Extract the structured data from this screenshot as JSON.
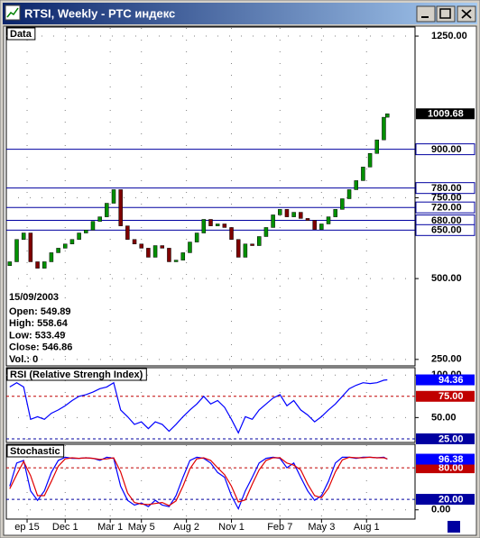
{
  "window": {
    "title": "RTSI, Weekly - РТС индекс"
  },
  "chart_data": [
    {
      "type": "candlestick",
      "title": "Data",
      "x": [
        -5,
        -3,
        -1,
        1,
        3,
        5,
        7,
        9,
        11,
        13,
        15,
        17,
        19,
        21,
        23,
        25,
        27,
        29,
        31,
        33,
        35,
        37,
        39,
        41,
        43,
        45,
        47,
        49,
        51,
        53,
        55,
        57,
        59,
        61,
        63,
        65,
        67,
        69,
        71,
        73,
        75,
        77,
        79,
        81,
        83,
        85,
        87,
        89,
        91,
        93,
        95,
        97,
        99,
        101,
        103,
        104
      ],
      "xlim": [
        -6,
        112
      ],
      "open": [
        540,
        552,
        621,
        641,
        552,
        532,
        552,
        580,
        594,
        607,
        621,
        641,
        650,
        677,
        691,
        733,
        775,
        663,
        621,
        607,
        594,
        566,
        602,
        594,
        552,
        557,
        580,
        613,
        641,
        683,
        663,
        669,
        658,
        621,
        566,
        607,
        602,
        630,
        658,
        697,
        714,
        691,
        705,
        686,
        680,
        652,
        669,
        691,
        714,
        747,
        775,
        803,
        845,
        887,
        929,
        999
      ],
      "close": [
        552,
        621,
        641,
        552,
        532,
        552,
        580,
        594,
        607,
        621,
        641,
        650,
        677,
        691,
        733,
        775,
        663,
        621,
        607,
        594,
        566,
        602,
        594,
        552,
        557,
        580,
        613,
        641,
        683,
        663,
        669,
        658,
        621,
        566,
        607,
        602,
        630,
        658,
        697,
        714,
        691,
        705,
        686,
        680,
        652,
        669,
        691,
        714,
        747,
        775,
        803,
        845,
        887,
        929,
        999,
        1009.68
      ],
      "up_color": "#009000",
      "down_color": "#800000",
      "last_label_color": "#000000",
      "ylim": [
        230,
        1278
      ],
      "yticks": [
        {
          "value": 1250,
          "label": "1250.00"
        },
        {
          "value": 750,
          "label": "750.00"
        },
        {
          "value": 500,
          "label": "500.00"
        },
        {
          "value": 250,
          "label": "250.00"
        }
      ],
      "levels": [
        {
          "value": 900,
          "label": "900.00",
          "color": "#0000a0"
        },
        {
          "value": 780,
          "label": "780.00",
          "color": "#0000a0"
        },
        {
          "value": 720,
          "label": "720.00",
          "color": "#0000a0"
        },
        {
          "value": 680,
          "label": "680.00",
          "color": "#0000a0"
        },
        {
          "value": 650,
          "label": "650.00",
          "color": "#0000a0"
        }
      ],
      "info": {
        "date": "15/09/2003",
        "fields": [
          {
            "label": "Open:",
            "value": 549.89
          },
          {
            "label": "High:",
            "value": 558.64
          },
          {
            "label": "Low:",
            "value": 533.49
          },
          {
            "label": "Close:",
            "value": 546.86
          },
          {
            "label": "Vol.:",
            "value": 0
          }
        ]
      },
      "grid": true
    },
    {
      "type": "line",
      "title": "RSI (Relative Strengh Index)",
      "series": [
        {
          "color": "#0000ff",
          "values": [
            86,
            91,
            86,
            48,
            51,
            48,
            55,
            59,
            64,
            70,
            75,
            77,
            80,
            84,
            86,
            91,
            59,
            51,
            42,
            45,
            37,
            45,
            42,
            34,
            42,
            51,
            59,
            66,
            75,
            66,
            70,
            62,
            48,
            32,
            51,
            48,
            59,
            66,
            73,
            77,
            64,
            70,
            59,
            53,
            45,
            51,
            59,
            66,
            75,
            84,
            88,
            91,
            90,
            91,
            94,
            94.36
          ]
        }
      ],
      "ylim": [
        20.7,
        108.7
      ],
      "yticks": [
        {
          "value": 100,
          "label": "100.00"
        },
        {
          "value": 50,
          "label": "50.00"
        }
      ],
      "levels": [
        {
          "value": 75,
          "label": "75.00",
          "color": "#c00000"
        },
        {
          "value": 25,
          "label": "25.00",
          "color": "#0000a0"
        }
      ],
      "grid": true
    },
    {
      "type": "line",
      "title": "Stochastic",
      "series": [
        {
          "color": "#0000ff",
          "values": [
            45,
            89,
            94,
            36,
            18,
            36,
            71,
            94,
            100,
            98,
            98,
            99,
            98,
            94,
            100,
            98,
            45,
            18,
            9,
            13,
            6,
            18,
            9,
            6,
            27,
            62,
            94,
            100,
            98,
            89,
            71,
            62,
            27,
            2,
            36,
            62,
            89,
            98,
            100,
            98,
            80,
            89,
            62,
            36,
            18,
            27,
            54,
            89,
            100,
            100,
            98,
            100,
            100,
            99,
            100,
            96.38
          ]
        },
        {
          "color": "#e00000",
          "values": [
            40,
            67,
            92,
            65,
            27,
            27,
            54,
            83,
            97,
            99,
            98,
            99,
            98,
            96,
            97,
            99,
            72,
            32,
            14,
            11,
            10,
            12,
            14,
            8,
            17,
            45,
            78,
            97,
            99,
            94,
            80,
            67,
            45,
            15,
            19,
            49,
            76,
            94,
            99,
            99,
            89,
            85,
            76,
            49,
            27,
            23,
            41,
            72,
            95,
            100,
            99,
            99,
            100,
            99,
            99,
            97
          ]
        }
      ],
      "ylim": [
        -17.6,
        124.7
      ],
      "yticks": [
        {
          "value": 0,
          "label": "0.00"
        }
      ],
      "levels": [
        {
          "value": 80,
          "label": "80.00",
          "color": "#c00000"
        },
        {
          "value": 20,
          "label": "20.00",
          "color": "#0000a0"
        }
      ],
      "xticks": [
        {
          "value": 0,
          "label": "ep 15"
        },
        {
          "value": 11,
          "label": "Dec 1"
        },
        {
          "value": 24,
          "label": "Mar 1"
        },
        {
          "value": 33,
          "label": "May 5"
        },
        {
          "value": 46,
          "label": "Aug 2"
        },
        {
          "value": 59,
          "label": "Nov 1"
        },
        {
          "value": 73,
          "label": "Feb 7"
        },
        {
          "value": 85,
          "label": "May 3"
        },
        {
          "value": 98,
          "label": "Aug 1"
        }
      ],
      "grid": true
    }
  ]
}
